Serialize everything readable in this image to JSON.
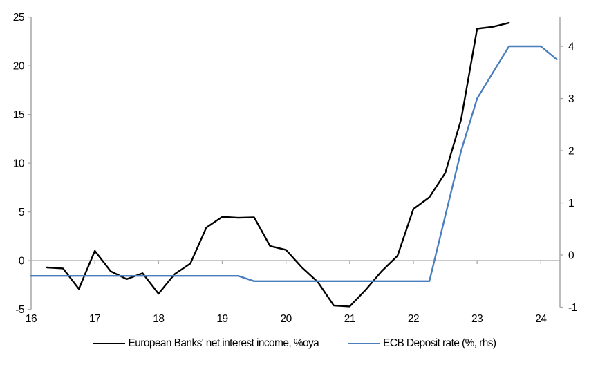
{
  "chart_data": {
    "type": "line",
    "x_axis": {
      "tick_labels": [
        "16",
        "17",
        "18",
        "19",
        "20",
        "21",
        "22",
        "23",
        "24"
      ],
      "tick_values": [
        16,
        17,
        18,
        19,
        20,
        21,
        22,
        23,
        24
      ],
      "range": [
        16,
        24.3
      ]
    },
    "left_axis": {
      "tick_labels": [
        "25",
        "20",
        "15",
        "10",
        "5",
        "0",
        "-5"
      ],
      "tick_values": [
        25,
        20,
        15,
        10,
        5,
        0,
        -5
      ],
      "range": [
        -5,
        25
      ],
      "zero_gridline": true
    },
    "right_axis": {
      "tick_labels": [
        "4",
        "3",
        "2",
        "1",
        "0",
        "-1"
      ],
      "tick_values": [
        4,
        3,
        2,
        1,
        0,
        -1
      ],
      "range": [
        -1,
        4.57
      ]
    },
    "grid": "zero-line-only",
    "legend_position": "bottom",
    "series": [
      {
        "name": "European Banks' net interest income, %oya",
        "axis": "left",
        "color": "#000000",
        "x": [
          16.25,
          16.5,
          16.75,
          17,
          17.25,
          17.5,
          17.75,
          18,
          18.25,
          18.5,
          18.75,
          19,
          19.25,
          19.5,
          19.75,
          20,
          20.25,
          20.5,
          20.75,
          21,
          21.25,
          21.5,
          21.75,
          22,
          22.25,
          22.5,
          22.75,
          23,
          23.25,
          23.5
        ],
        "values": [
          -0.7,
          -0.8,
          -2.9,
          1.0,
          -1.1,
          -1.9,
          -1.3,
          -3.4,
          -1.4,
          -0.3,
          3.4,
          4.5,
          4.4,
          4.45,
          1.5,
          1.1,
          -0.7,
          -2.2,
          -4.6,
          -4.7,
          -3.0,
          -1.1,
          0.5,
          5.3,
          6.5,
          9.0,
          14.5,
          23.8,
          24.0,
          24.4
        ]
      },
      {
        "name": "ECB Deposit rate (%, rhs)",
        "axis": "right",
        "color": "#4a7ebc",
        "x": [
          16,
          16.25,
          16.5,
          16.75,
          17,
          17.25,
          17.5,
          17.75,
          18,
          18.25,
          18.5,
          18.75,
          19,
          19.25,
          19.5,
          19.75,
          20,
          20.25,
          20.5,
          20.75,
          21,
          21.25,
          21.5,
          21.75,
          22,
          22.25,
          22.5,
          22.75,
          23,
          23.25,
          23.5,
          23.75,
          24,
          24.25
        ],
        "values": [
          -0.4,
          -0.4,
          -0.4,
          -0.4,
          -0.4,
          -0.4,
          -0.4,
          -0.4,
          -0.4,
          -0.4,
          -0.4,
          -0.4,
          -0.4,
          -0.4,
          -0.5,
          -0.5,
          -0.5,
          -0.5,
          -0.5,
          -0.5,
          -0.5,
          -0.5,
          -0.5,
          -0.5,
          -0.5,
          -0.5,
          0.75,
          2.0,
          3.0,
          3.5,
          4.0,
          4.0,
          4.0,
          3.75
        ]
      }
    ]
  },
  "colors": {
    "nii_line": "#000000",
    "ecb_line": "#4a7ebc",
    "axis": "#a6a6a6",
    "text": "#000000"
  }
}
